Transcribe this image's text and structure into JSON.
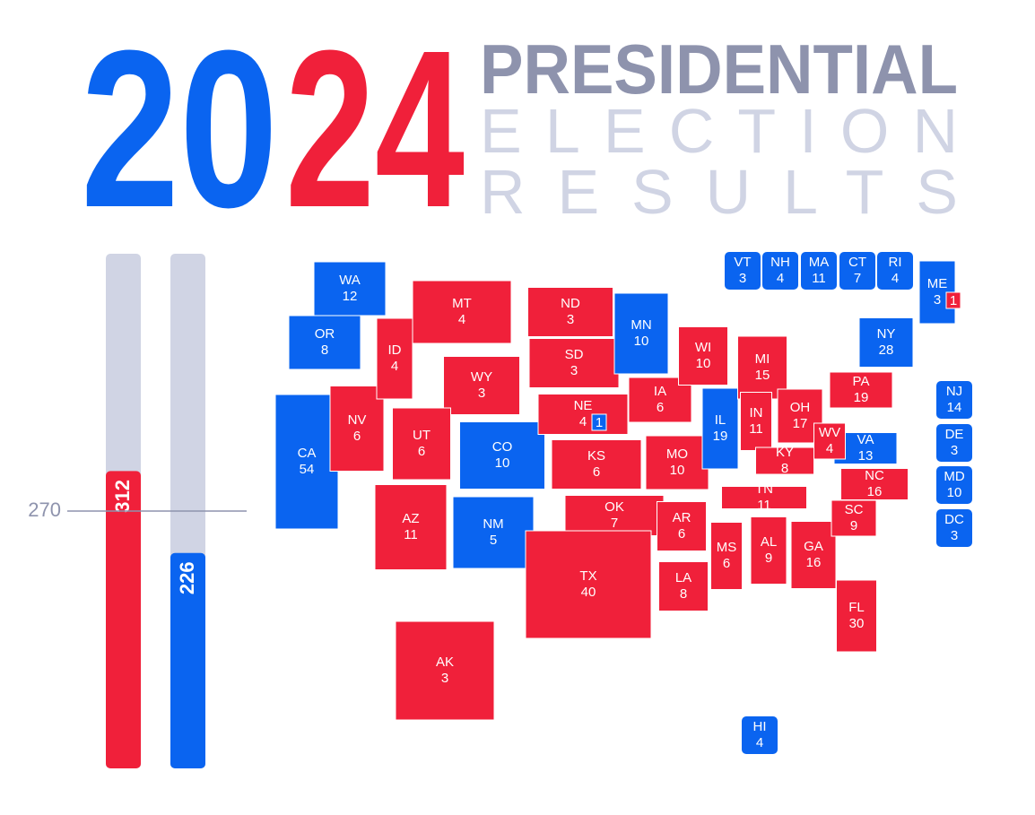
{
  "header": {
    "year_parts": [
      {
        "text": "20",
        "color": "#0a64f0"
      },
      {
        "text": "24",
        "color": "#f0203a"
      }
    ],
    "line1": "PRESIDENTIAL",
    "line2": "ELECTION",
    "line3": "RESULTS"
  },
  "tally": {
    "threshold": 270,
    "bars": [
      {
        "value": 312,
        "color": "#f0203a"
      },
      {
        "value": 226,
        "color": "#0a64f0"
      }
    ]
  },
  "states": [
    {
      "abbr": "WA",
      "votes": 12,
      "color": "#0a64f0"
    },
    {
      "abbr": "OR",
      "votes": 8,
      "color": "#0a64f0"
    },
    {
      "abbr": "CA",
      "votes": 54,
      "color": "#0a64f0"
    },
    {
      "abbr": "NV",
      "votes": 6,
      "color": "#f0203a"
    },
    {
      "abbr": "ID",
      "votes": 4,
      "color": "#f0203a"
    },
    {
      "abbr": "MT",
      "votes": 4,
      "color": "#f0203a"
    },
    {
      "abbr": "WY",
      "votes": 3,
      "color": "#f0203a"
    },
    {
      "abbr": "UT",
      "votes": 6,
      "color": "#f0203a"
    },
    {
      "abbr": "CO",
      "votes": 10,
      "color": "#0a64f0"
    },
    {
      "abbr": "AZ",
      "votes": 11,
      "color": "#f0203a"
    },
    {
      "abbr": "NM",
      "votes": 5,
      "color": "#0a64f0"
    },
    {
      "abbr": "ND",
      "votes": 3,
      "color": "#f0203a"
    },
    {
      "abbr": "SD",
      "votes": 3,
      "color": "#f0203a"
    },
    {
      "abbr": "NE",
      "votes": 4,
      "color": "#f0203a",
      "split": {
        "votes": 1,
        "color": "#0a64f0"
      }
    },
    {
      "abbr": "KS",
      "votes": 6,
      "color": "#f0203a"
    },
    {
      "abbr": "OK",
      "votes": 7,
      "color": "#f0203a"
    },
    {
      "abbr": "TX",
      "votes": 40,
      "color": "#f0203a"
    },
    {
      "abbr": "MN",
      "votes": 10,
      "color": "#0a64f0"
    },
    {
      "abbr": "IA",
      "votes": 6,
      "color": "#f0203a"
    },
    {
      "abbr": "MO",
      "votes": 10,
      "color": "#f0203a"
    },
    {
      "abbr": "AR",
      "votes": 6,
      "color": "#f0203a"
    },
    {
      "abbr": "LA",
      "votes": 8,
      "color": "#f0203a"
    },
    {
      "abbr": "WI",
      "votes": 10,
      "color": "#f0203a"
    },
    {
      "abbr": "IL",
      "votes": 19,
      "color": "#0a64f0"
    },
    {
      "abbr": "MI",
      "votes": 15,
      "color": "#f0203a"
    },
    {
      "abbr": "IN",
      "votes": 11,
      "color": "#f0203a"
    },
    {
      "abbr": "OH",
      "votes": 17,
      "color": "#f0203a"
    },
    {
      "abbr": "KY",
      "votes": 8,
      "color": "#f0203a"
    },
    {
      "abbr": "TN",
      "votes": 11,
      "color": "#f0203a"
    },
    {
      "abbr": "MS",
      "votes": 6,
      "color": "#f0203a"
    },
    {
      "abbr": "AL",
      "votes": 9,
      "color": "#f0203a"
    },
    {
      "abbr": "GA",
      "votes": 16,
      "color": "#f0203a"
    },
    {
      "abbr": "FL",
      "votes": 30,
      "color": "#f0203a"
    },
    {
      "abbr": "SC",
      "votes": 9,
      "color": "#f0203a"
    },
    {
      "abbr": "NC",
      "votes": 16,
      "color": "#f0203a"
    },
    {
      "abbr": "VA",
      "votes": 13,
      "color": "#0a64f0"
    },
    {
      "abbr": "WV",
      "votes": 4,
      "color": "#f0203a"
    },
    {
      "abbr": "PA",
      "votes": 19,
      "color": "#f0203a"
    },
    {
      "abbr": "NY",
      "votes": 28,
      "color": "#0a64f0"
    },
    {
      "abbr": "ME",
      "votes": 3,
      "color": "#0a64f0",
      "split": {
        "votes": 1,
        "color": "#f0203a"
      }
    },
    {
      "abbr": "AK",
      "votes": 3,
      "color": "#f0203a"
    }
  ],
  "boxed_states": [
    {
      "abbr": "VT",
      "votes": 3,
      "color": "#0a64f0"
    },
    {
      "abbr": "NH",
      "votes": 4,
      "color": "#0a64f0"
    },
    {
      "abbr": "MA",
      "votes": 11,
      "color": "#0a64f0"
    },
    {
      "abbr": "CT",
      "votes": 7,
      "color": "#0a64f0"
    },
    {
      "abbr": "RI",
      "votes": 4,
      "color": "#0a64f0"
    },
    {
      "abbr": "NJ",
      "votes": 14,
      "color": "#0a64f0"
    },
    {
      "abbr": "DE",
      "votes": 3,
      "color": "#0a64f0"
    },
    {
      "abbr": "MD",
      "votes": 10,
      "color": "#0a64f0"
    },
    {
      "abbr": "DC",
      "votes": 3,
      "color": "#0a64f0"
    },
    {
      "abbr": "HI",
      "votes": 4,
      "color": "#0a64f0"
    }
  ]
}
